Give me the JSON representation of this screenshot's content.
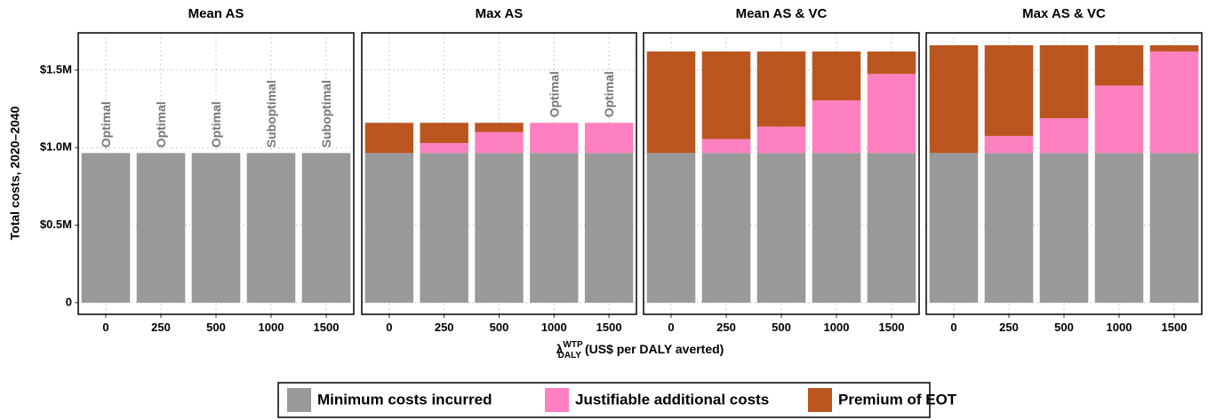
{
  "ylabel": "Total costs, 2020–2040",
  "xlabel": {
    "symbol": "λ",
    "superscript": "WTP",
    "subscript": "DALY",
    "text": "(US$ per DALY averted)"
  },
  "chart_data": [
    {
      "type": "bar",
      "stacked": true,
      "title": "Mean AS",
      "categories": [
        "0",
        "250",
        "500",
        "1000",
        "1500"
      ],
      "series": [
        {
          "name": "Minimum costs incurred",
          "color": "#999999",
          "values": [
            965000,
            965000,
            965000,
            965000,
            965000
          ]
        },
        {
          "name": "Justifiable additional costs",
          "color": "#ff80c0",
          "values": [
            0,
            0,
            0,
            0,
            0
          ]
        },
        {
          "name": "Premium of EOT",
          "color": "#bb5520",
          "values": [
            0,
            0,
            0,
            0,
            0
          ]
        }
      ],
      "annotations": [
        "Optimal",
        "Optimal",
        "Optimal",
        "Suboptimal",
        "Suboptimal"
      ],
      "ylim": [
        -75000,
        1740000
      ],
      "yticks": [
        0,
        {
          "value": 500000,
          "label": "$0.5M"
        },
        {
          "value": 1000000,
          "label": "$1.0M"
        },
        {
          "value": 1500000,
          "label": "$1.5M"
        }
      ],
      "grid": true
    },
    {
      "type": "bar",
      "stacked": true,
      "title": "Max AS",
      "categories": [
        "0",
        "250",
        "500",
        "1000",
        "1500"
      ],
      "series": [
        {
          "name": "Minimum costs incurred",
          "color": "#999999",
          "values": [
            965000,
            965000,
            965000,
            965000,
            965000
          ]
        },
        {
          "name": "Justifiable additional costs",
          "color": "#ff80c0",
          "values": [
            0,
            65000,
            135000,
            195000,
            195000
          ]
        },
        {
          "name": "Premium of EOT",
          "color": "#bb5520",
          "values": [
            195000,
            130000,
            60000,
            0,
            0
          ]
        }
      ],
      "annotations": [
        null,
        null,
        null,
        "Optimal",
        "Optimal"
      ],
      "ylim": [
        -75000,
        1740000
      ],
      "yticks": [
        0,
        {
          "value": 500000,
          "label": "$0.5M"
        },
        {
          "value": 1000000,
          "label": "$1.0M"
        },
        {
          "value": 1500000,
          "label": "$1.5M"
        }
      ],
      "grid": true
    },
    {
      "type": "bar",
      "stacked": true,
      "title": "Mean AS & VC",
      "categories": [
        "0",
        "250",
        "500",
        "1000",
        "1500"
      ],
      "series": [
        {
          "name": "Minimum costs incurred",
          "color": "#999999",
          "values": [
            965000,
            965000,
            965000,
            965000,
            965000
          ]
        },
        {
          "name": "Justifiable additional costs",
          "color": "#ff80c0",
          "values": [
            0,
            90000,
            170000,
            340000,
            510000
          ]
        },
        {
          "name": "Premium of EOT",
          "color": "#bb5520",
          "values": [
            655000,
            565000,
            485000,
            315000,
            145000
          ]
        }
      ],
      "ylim": [
        -75000,
        1740000
      ],
      "yticks": [
        0,
        {
          "value": 500000,
          "label": "$0.5M"
        },
        {
          "value": 1000000,
          "label": "$1.0M"
        },
        {
          "value": 1500000,
          "label": "$1.5M"
        }
      ],
      "grid": true
    },
    {
      "type": "bar",
      "stacked": true,
      "title": "Max AS & VC",
      "categories": [
        "0",
        "250",
        "500",
        "1000",
        "1500"
      ],
      "series": [
        {
          "name": "Minimum costs incurred",
          "color": "#999999",
          "values": [
            965000,
            965000,
            965000,
            965000,
            965000
          ]
        },
        {
          "name": "Justifiable additional costs",
          "color": "#ff80c0",
          "values": [
            0,
            110000,
            225000,
            435000,
            655000
          ]
        },
        {
          "name": "Premium of EOT",
          "color": "#bb5520",
          "values": [
            695000,
            585000,
            470000,
            260000,
            40000
          ]
        }
      ],
      "ylim": [
        -75000,
        1740000
      ],
      "yticks": [
        0,
        {
          "value": 500000,
          "label": "$0.5M"
        },
        {
          "value": 1000000,
          "label": "$1.0M"
        },
        {
          "value": 1500000,
          "label": "$1.5M"
        }
      ],
      "grid": true
    }
  ]
}
